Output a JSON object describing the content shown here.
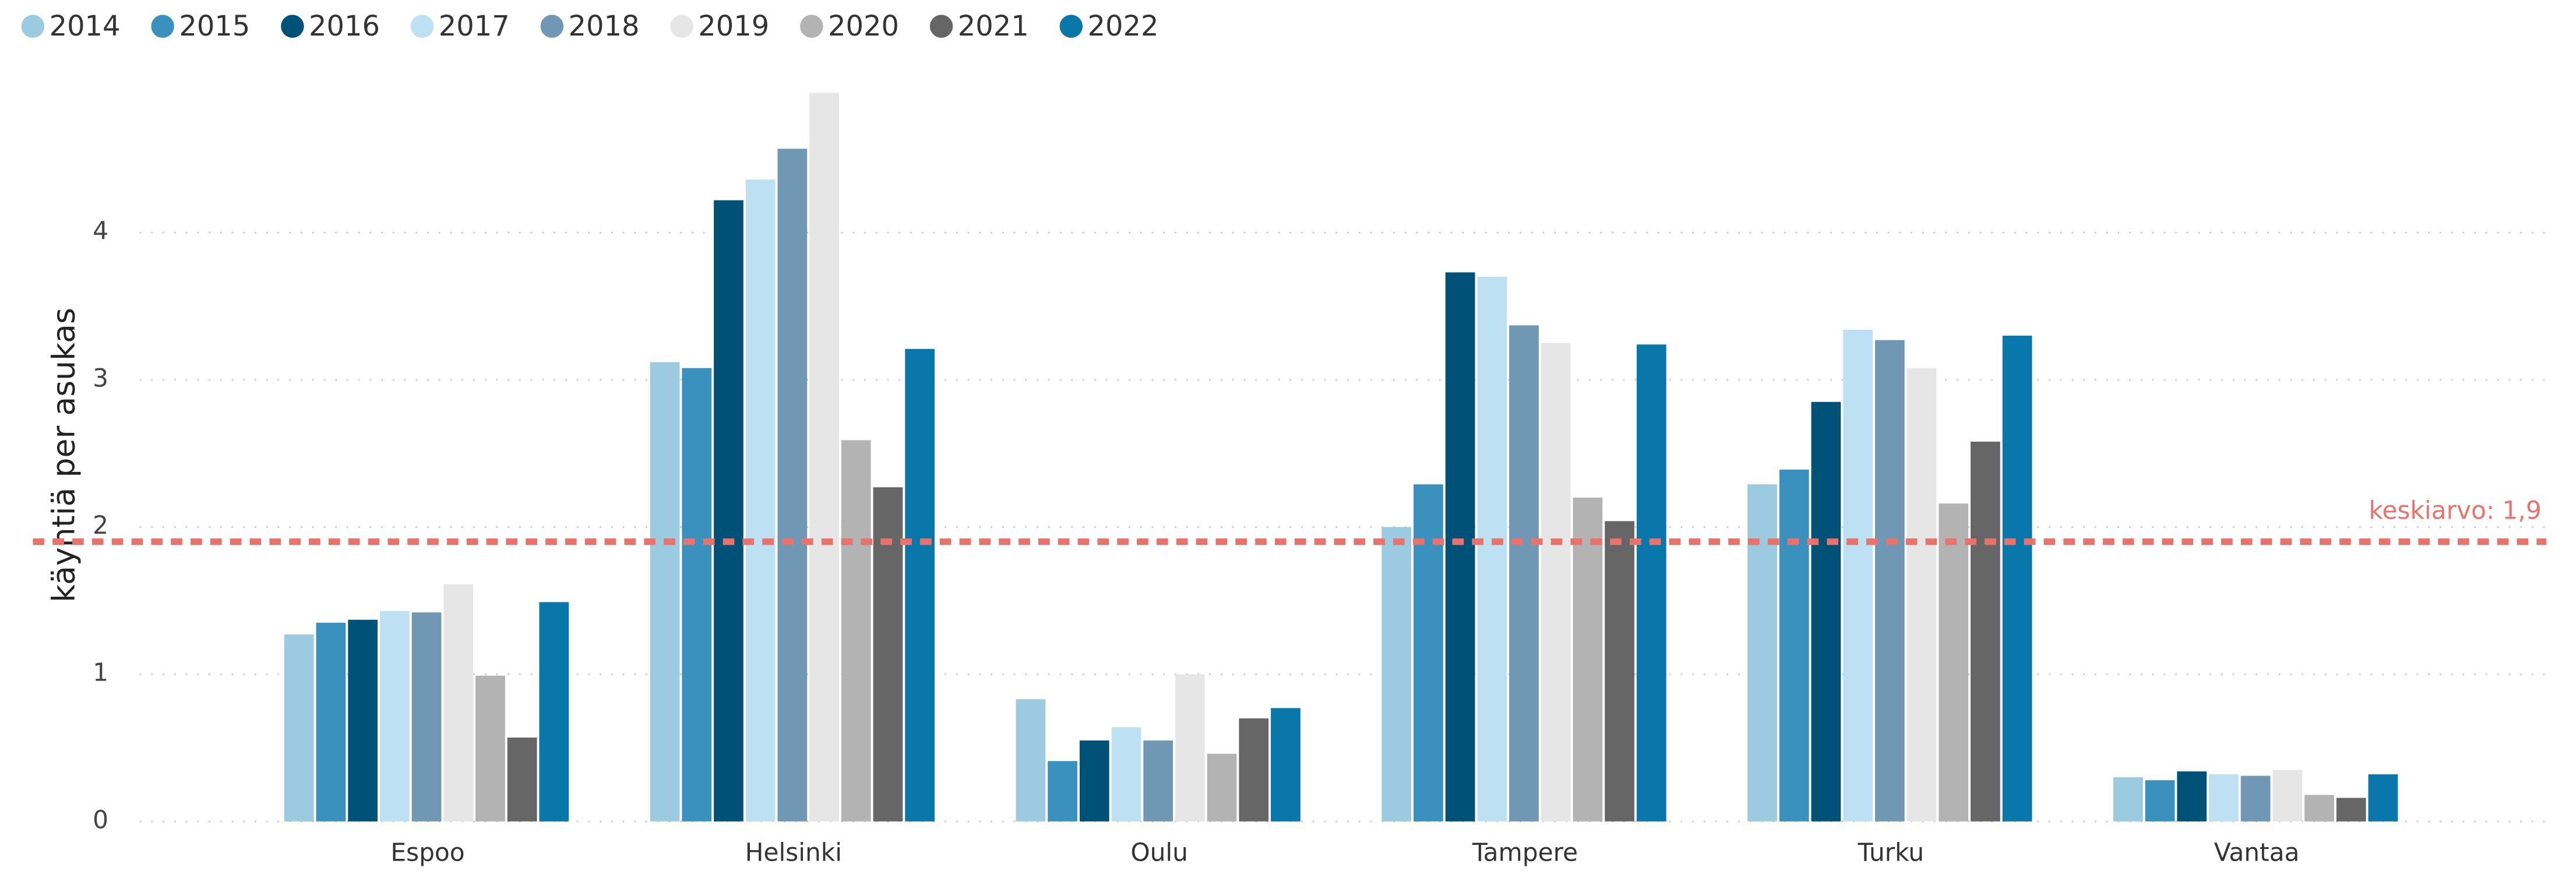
{
  "chart_data": {
    "type": "bar",
    "y_label": "käyntiä per asukas",
    "categories": [
      "Espoo",
      "Helsinki",
      "Oulu",
      "Tampere",
      "Turku",
      "Vantaa"
    ],
    "series": [
      {
        "name": "2014",
        "color": "#9ccae0",
        "values": [
          1.27,
          3.12,
          0.83,
          2.0,
          2.29,
          0.3
        ]
      },
      {
        "name": "2015",
        "color": "#3a91bd",
        "values": [
          1.35,
          3.08,
          0.41,
          2.29,
          2.39,
          0.28
        ]
      },
      {
        "name": "2016",
        "color": "#005177",
        "values": [
          1.37,
          4.22,
          0.55,
          3.73,
          2.85,
          0.34
        ]
      },
      {
        "name": "2017",
        "color": "#bde0f3",
        "values": [
          1.43,
          4.36,
          0.64,
          3.7,
          3.34,
          0.32
        ]
      },
      {
        "name": "2018",
        "color": "#7098b5",
        "values": [
          1.42,
          4.57,
          0.55,
          3.37,
          3.27,
          0.31
        ]
      },
      {
        "name": "2019",
        "color": "#e6e6e6",
        "values": [
          1.61,
          4.95,
          1.0,
          3.25,
          3.08,
          0.35
        ]
      },
      {
        "name": "2020",
        "color": "#b3b3b3",
        "values": [
          0.99,
          2.59,
          0.46,
          2.2,
          2.16,
          0.18
        ]
      },
      {
        "name": "2021",
        "color": "#666666",
        "values": [
          0.57,
          2.27,
          0.7,
          2.04,
          2.58,
          0.16
        ]
      },
      {
        "name": "2022",
        "color": "#0a77aa",
        "values": [
          1.49,
          3.21,
          0.77,
          3.24,
          3.3,
          0.32
        ]
      }
    ],
    "ylim": [
      0,
      5
    ],
    "yticks": [
      0,
      1,
      2,
      3,
      4
    ],
    "grid": true,
    "reference_line": {
      "value": 1.9,
      "label": "keskiarvo: 1,9",
      "color": "#e8736c"
    },
    "legend": "top-left"
  }
}
